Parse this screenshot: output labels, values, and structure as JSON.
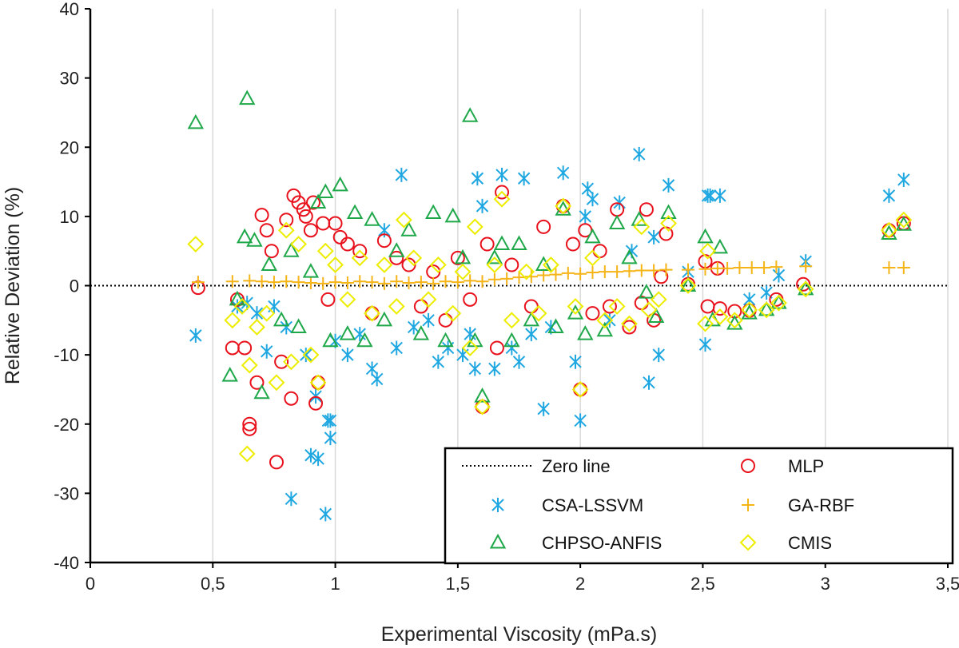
{
  "chart_data": {
    "type": "scatter",
    "title": "",
    "xlabel": "Experimental Viscosity (mPa.s)",
    "ylabel": "Relative Deviation (%)",
    "xlim": [
      0,
      3.5
    ],
    "ylim": [
      -40,
      40
    ],
    "x_ticks": [
      0,
      0.5,
      1,
      1.5,
      2,
      2.5,
      3,
      3.5
    ],
    "x_tick_labels": [
      "0",
      "0,5",
      "1",
      "1,5",
      "2",
      "2,5",
      "3",
      "3,5"
    ],
    "y_ticks": [
      -40,
      -30,
      -20,
      -10,
      0,
      10,
      20,
      30,
      40
    ],
    "y_tick_labels": [
      "-40",
      "-30",
      "-20",
      "-10",
      "0",
      "10",
      "20",
      "30",
      "40"
    ],
    "grid": "vertical",
    "legend_position": "bottom-right",
    "legend": [
      {
        "name": "Zero line",
        "marker": "dotted-line",
        "color": "#000000"
      },
      {
        "name": "MLP",
        "marker": "circle",
        "color": "#e8111c"
      },
      {
        "name": "CSA-LSSVM",
        "marker": "asterisk",
        "color": "#1ea7e1"
      },
      {
        "name": "GA-RBF",
        "marker": "plus",
        "color": "#f5b417"
      },
      {
        "name": "CHPSO-ANFIS",
        "marker": "triangle",
        "color": "#1fa84a"
      },
      {
        "name": "CMIS",
        "marker": "diamond",
        "color": "#eded00"
      }
    ],
    "series": [
      {
        "name": "CSA-LSSVM",
        "marker": "asterisk",
        "color": "#1ea7e1",
        "points": [
          [
            0.43,
            -7.2
          ],
          [
            0.6,
            -3
          ],
          [
            0.64,
            -2.5
          ],
          [
            0.68,
            -4
          ],
          [
            0.72,
            -9.5
          ],
          [
            0.75,
            -3
          ],
          [
            0.8,
            -6
          ],
          [
            0.82,
            -30.8
          ],
          [
            0.88,
            -10
          ],
          [
            0.9,
            -24.5
          ],
          [
            0.92,
            -16
          ],
          [
            0.93,
            -25
          ],
          [
            0.96,
            -33
          ],
          [
            0.97,
            -19.5
          ],
          [
            0.98,
            -19.5
          ],
          [
            0.98,
            -22
          ],
          [
            1.0,
            -8
          ],
          [
            1.05,
            -10
          ],
          [
            1.1,
            -7
          ],
          [
            1.15,
            -12
          ],
          [
            1.17,
            -13.5
          ],
          [
            1.2,
            8
          ],
          [
            1.25,
            -9
          ],
          [
            1.27,
            16
          ],
          [
            1.32,
            -6
          ],
          [
            1.38,
            -5
          ],
          [
            1.42,
            -11
          ],
          [
            1.46,
            -9
          ],
          [
            1.52,
            -10
          ],
          [
            1.55,
            -7
          ],
          [
            1.57,
            -12
          ],
          [
            1.58,
            15.5
          ],
          [
            1.6,
            11.5
          ],
          [
            1.65,
            -12
          ],
          [
            1.68,
            16
          ],
          [
            1.72,
            -9
          ],
          [
            1.75,
            -11
          ],
          [
            1.77,
            15.5
          ],
          [
            1.8,
            -7
          ],
          [
            1.85,
            -17.8
          ],
          [
            1.88,
            -6
          ],
          [
            1.93,
            16.3
          ],
          [
            1.98,
            -11
          ],
          [
            2.0,
            -19.5
          ],
          [
            2.02,
            10
          ],
          [
            2.03,
            14
          ],
          [
            2.05,
            12.5
          ],
          [
            2.12,
            -5
          ],
          [
            2.16,
            12
          ],
          [
            2.21,
            5
          ],
          [
            2.24,
            19
          ],
          [
            2.28,
            -14
          ],
          [
            2.3,
            7
          ],
          [
            2.32,
            -10
          ],
          [
            2.36,
            14.5
          ],
          [
            2.44,
            2
          ],
          [
            2.51,
            -8.5
          ],
          [
            2.52,
            13
          ],
          [
            2.53,
            13
          ],
          [
            2.57,
            13
          ],
          [
            2.69,
            -2
          ],
          [
            2.76,
            -1
          ],
          [
            2.81,
            1.5
          ],
          [
            2.92,
            3.5
          ],
          [
            3.26,
            13
          ],
          [
            3.32,
            15.3
          ]
        ]
      },
      {
        "name": "MLP",
        "marker": "circle",
        "color": "#e8111c",
        "points": [
          [
            0.44,
            -0.3
          ],
          [
            0.58,
            -9
          ],
          [
            0.6,
            -2
          ],
          [
            0.63,
            -9
          ],
          [
            0.65,
            -20
          ],
          [
            0.65,
            -20.7
          ],
          [
            0.68,
            -14
          ],
          [
            0.7,
            10.2
          ],
          [
            0.72,
            8
          ],
          [
            0.74,
            5
          ],
          [
            0.76,
            -25.5
          ],
          [
            0.78,
            -11
          ],
          [
            0.8,
            9.5
          ],
          [
            0.82,
            -16.3
          ],
          [
            0.83,
            13
          ],
          [
            0.85,
            12
          ],
          [
            0.87,
            11
          ],
          [
            0.88,
            10
          ],
          [
            0.9,
            8
          ],
          [
            0.91,
            12
          ],
          [
            0.92,
            -17
          ],
          [
            0.93,
            -14
          ],
          [
            0.95,
            9
          ],
          [
            0.97,
            -2
          ],
          [
            1.0,
            9
          ],
          [
            1.02,
            7
          ],
          [
            1.05,
            6
          ],
          [
            1.1,
            5
          ],
          [
            1.15,
            -4
          ],
          [
            1.2,
            6.5
          ],
          [
            1.25,
            4
          ],
          [
            1.3,
            3
          ],
          [
            1.35,
            -3
          ],
          [
            1.4,
            2
          ],
          [
            1.45,
            -5
          ],
          [
            1.5,
            4
          ],
          [
            1.55,
            -2
          ],
          [
            1.6,
            -17.5
          ],
          [
            1.62,
            6
          ],
          [
            1.66,
            -9
          ],
          [
            1.68,
            13.5
          ],
          [
            1.72,
            3
          ],
          [
            1.8,
            -3
          ],
          [
            1.85,
            8.5
          ],
          [
            1.93,
            11.5
          ],
          [
            1.97,
            6
          ],
          [
            2.0,
            -15
          ],
          [
            2.02,
            8
          ],
          [
            2.05,
            -4
          ],
          [
            2.08,
            5
          ],
          [
            2.12,
            -3
          ],
          [
            2.15,
            11
          ],
          [
            2.2,
            -6
          ],
          [
            2.25,
            -2.5
          ],
          [
            2.27,
            11
          ],
          [
            2.3,
            -5
          ],
          [
            2.33,
            1.3
          ],
          [
            2.35,
            7.5
          ],
          [
            2.44,
            0.2
          ],
          [
            2.51,
            3.5
          ],
          [
            2.52,
            -3
          ],
          [
            2.56,
            2.5
          ],
          [
            2.57,
            -3.3
          ],
          [
            2.63,
            -3.7
          ],
          [
            2.69,
            -3.6
          ],
          [
            2.8,
            -2
          ],
          [
            2.91,
            0.2
          ],
          [
            3.26,
            8
          ],
          [
            3.32,
            9
          ]
        ]
      },
      {
        "name": "GA-RBF",
        "marker": "plus",
        "color": "#f5b417",
        "points": [
          [
            0.44,
            0.5
          ],
          [
            0.58,
            0.6
          ],
          [
            0.65,
            0.7
          ],
          [
            0.7,
            0.6
          ],
          [
            0.75,
            0.5
          ],
          [
            0.8,
            0.6
          ],
          [
            0.85,
            0.5
          ],
          [
            0.9,
            0.4
          ],
          [
            0.95,
            0.3
          ],
          [
            1.0,
            0.5
          ],
          [
            1.05,
            0.4
          ],
          [
            1.1,
            0.6
          ],
          [
            1.15,
            0.5
          ],
          [
            1.2,
            0.3
          ],
          [
            1.25,
            0.6
          ],
          [
            1.3,
            0.4
          ],
          [
            1.35,
            0.5
          ],
          [
            1.4,
            0.3
          ],
          [
            1.45,
            0.6
          ],
          [
            1.5,
            0.5
          ],
          [
            1.55,
            0.7
          ],
          [
            1.6,
            0.6
          ],
          [
            1.65,
            0.9
          ],
          [
            1.7,
            1.0
          ],
          [
            1.75,
            1.2
          ],
          [
            1.8,
            1.3
          ],
          [
            1.85,
            1.5
          ],
          [
            1.9,
            1.6
          ],
          [
            1.95,
            1.8
          ],
          [
            2.0,
            1.7
          ],
          [
            2.05,
            1.9
          ],
          [
            2.1,
            2.0
          ],
          [
            2.15,
            2.0
          ],
          [
            2.2,
            2.1
          ],
          [
            2.25,
            2.2
          ],
          [
            2.3,
            2.2
          ],
          [
            2.35,
            2.3
          ],
          [
            2.44,
            2.3
          ],
          [
            2.51,
            2.4
          ],
          [
            2.56,
            2.5
          ],
          [
            2.6,
            2.5
          ],
          [
            2.65,
            2.6
          ],
          [
            2.7,
            2.6
          ],
          [
            2.75,
            2.6
          ],
          [
            2.8,
            2.7
          ],
          [
            2.92,
            2.8
          ],
          [
            3.26,
            2.6
          ],
          [
            3.32,
            2.6
          ]
        ]
      },
      {
        "name": "CHPSO-ANFIS",
        "marker": "triangle",
        "color": "#1fa84a",
        "points": [
          [
            0.43,
            23.5
          ],
          [
            0.57,
            -13
          ],
          [
            0.6,
            -2
          ],
          [
            0.63,
            7
          ],
          [
            0.64,
            27
          ],
          [
            0.67,
            6.5
          ],
          [
            0.7,
            -15.5
          ],
          [
            0.73,
            3
          ],
          [
            0.78,
            -5
          ],
          [
            0.82,
            5
          ],
          [
            0.85,
            -6
          ],
          [
            0.9,
            2
          ],
          [
            0.93,
            12
          ],
          [
            0.96,
            13.5
          ],
          [
            0.98,
            -8
          ],
          [
            1.02,
            14.5
          ],
          [
            1.05,
            -7
          ],
          [
            1.08,
            10.5
          ],
          [
            1.12,
            -8
          ],
          [
            1.15,
            9.5
          ],
          [
            1.2,
            -5
          ],
          [
            1.25,
            5
          ],
          [
            1.3,
            8
          ],
          [
            1.35,
            -7
          ],
          [
            1.4,
            10.5
          ],
          [
            1.45,
            -8
          ],
          [
            1.48,
            10
          ],
          [
            1.52,
            4
          ],
          [
            1.55,
            24.5
          ],
          [
            1.57,
            -8
          ],
          [
            1.6,
            -16
          ],
          [
            1.65,
            4
          ],
          [
            1.68,
            6
          ],
          [
            1.72,
            -8
          ],
          [
            1.75,
            6
          ],
          [
            1.8,
            -5
          ],
          [
            1.85,
            3
          ],
          [
            1.9,
            -6
          ],
          [
            1.93,
            11
          ],
          [
            1.98,
            -4
          ],
          [
            2.02,
            -7
          ],
          [
            2.05,
            7
          ],
          [
            2.1,
            -6.5
          ],
          [
            2.15,
            9
          ],
          [
            2.2,
            4
          ],
          [
            2.24,
            9.5
          ],
          [
            2.27,
            -1
          ],
          [
            2.31,
            -4.5
          ],
          [
            2.36,
            10.5
          ],
          [
            2.44,
            0
          ],
          [
            2.51,
            7
          ],
          [
            2.54,
            -5
          ],
          [
            2.57,
            5.5
          ],
          [
            2.63,
            -5.5
          ],
          [
            2.69,
            -4
          ],
          [
            2.76,
            -3.5
          ],
          [
            2.81,
            -2.5
          ],
          [
            2.92,
            -0.5
          ],
          [
            3.26,
            7.5
          ],
          [
            3.32,
            8.8
          ]
        ]
      },
      {
        "name": "CMIS",
        "marker": "diamond",
        "color": "#eded00",
        "points": [
          [
            0.43,
            6
          ],
          [
            0.58,
            -5
          ],
          [
            0.62,
            -3
          ],
          [
            0.64,
            -24.3
          ],
          [
            0.65,
            -11.5
          ],
          [
            0.68,
            -6
          ],
          [
            0.72,
            -4
          ],
          [
            0.76,
            -14
          ],
          [
            0.8,
            8
          ],
          [
            0.82,
            -11
          ],
          [
            0.85,
            6
          ],
          [
            0.9,
            -10
          ],
          [
            0.93,
            -14
          ],
          [
            0.96,
            5
          ],
          [
            1.0,
            3
          ],
          [
            1.05,
            -2
          ],
          [
            1.1,
            4
          ],
          [
            1.15,
            -4
          ],
          [
            1.2,
            3
          ],
          [
            1.25,
            -3
          ],
          [
            1.28,
            9.5
          ],
          [
            1.32,
            4
          ],
          [
            1.38,
            -2
          ],
          [
            1.42,
            3
          ],
          [
            1.48,
            -4
          ],
          [
            1.52,
            2
          ],
          [
            1.55,
            -9
          ],
          [
            1.57,
            8.5
          ],
          [
            1.6,
            -17.5
          ],
          [
            1.65,
            3
          ],
          [
            1.68,
            12.5
          ],
          [
            1.72,
            -5
          ],
          [
            1.78,
            2
          ],
          [
            1.83,
            -4
          ],
          [
            1.88,
            3
          ],
          [
            1.93,
            11.5
          ],
          [
            1.98,
            -3
          ],
          [
            2.0,
            -15
          ],
          [
            2.05,
            4
          ],
          [
            2.1,
            -5
          ],
          [
            2.15,
            -3
          ],
          [
            2.2,
            -5.5
          ],
          [
            2.25,
            8.5
          ],
          [
            2.28,
            -3.5
          ],
          [
            2.32,
            -2
          ],
          [
            2.36,
            9
          ],
          [
            2.44,
            0
          ],
          [
            2.51,
            -5.5
          ],
          [
            2.52,
            5
          ],
          [
            2.57,
            -4.5
          ],
          [
            2.63,
            -5
          ],
          [
            2.69,
            -3.5
          ],
          [
            2.76,
            -3.5
          ],
          [
            2.81,
            -2.5
          ],
          [
            2.92,
            -0.5
          ],
          [
            3.26,
            8
          ],
          [
            3.32,
            9.5
          ]
        ]
      }
    ]
  }
}
